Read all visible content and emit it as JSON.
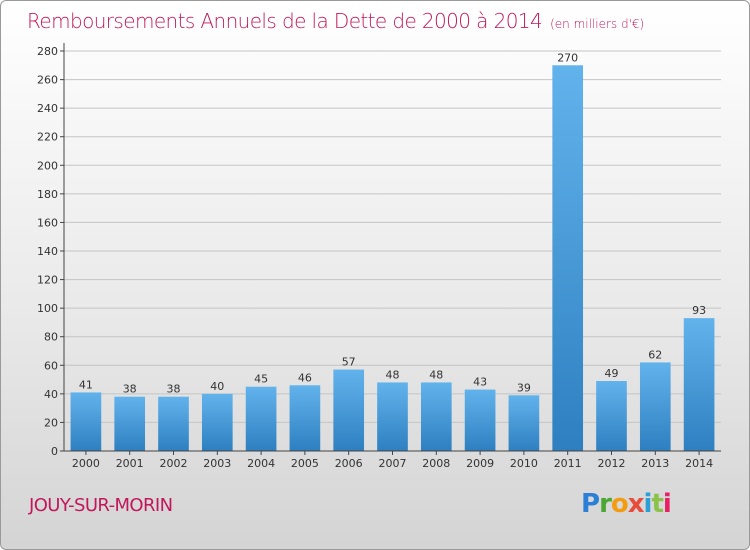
{
  "header": {
    "title": "Remboursements Annuels de la Dette de 2000 à 2014",
    "unit": "(en milliers d'€)"
  },
  "footer": {
    "commune": "JOUY-SUR-MORIN",
    "logo_text": "Proxiti"
  },
  "colors": {
    "title": "#c2185b",
    "bar_light": "#62b3ec",
    "bar_dark": "#2e7fc0",
    "axis": "#444444",
    "grid": "#c4c4c4"
  },
  "chart_data": {
    "type": "bar",
    "title": "Remboursements Annuels de la Dette de 2000 à 2014",
    "subtitle": "(en milliers d'€)",
    "xlabel": "",
    "ylabel": "",
    "categories": [
      "2000",
      "2001",
      "2002",
      "2003",
      "2004",
      "2005",
      "2006",
      "2007",
      "2008",
      "2009",
      "2010",
      "2011",
      "2012",
      "2013",
      "2014"
    ],
    "values": [
      41,
      38,
      38,
      40,
      45,
      46,
      57,
      48,
      48,
      43,
      39,
      270,
      49,
      62,
      93
    ],
    "ylim": [
      0,
      280
    ],
    "yticks": [
      0,
      20,
      40,
      60,
      80,
      100,
      120,
      140,
      160,
      180,
      200,
      220,
      240,
      260,
      280
    ],
    "grid": true,
    "legend": "none"
  }
}
